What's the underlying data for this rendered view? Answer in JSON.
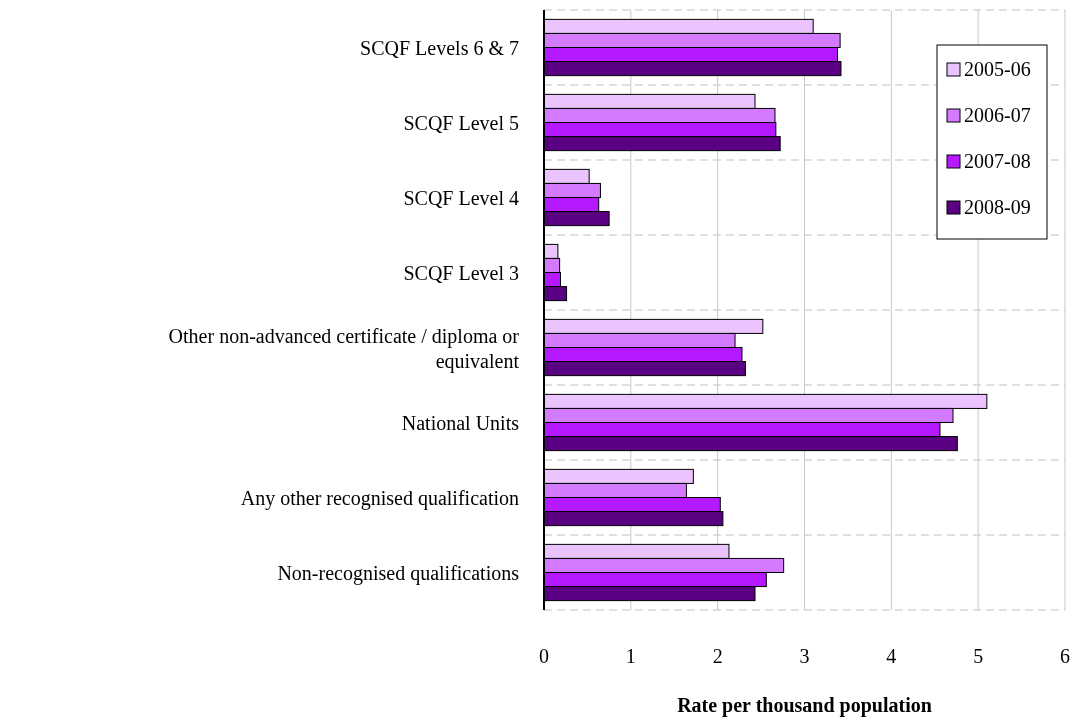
{
  "chart_data": {
    "type": "bar",
    "orientation": "horizontal",
    "xlabel": "Rate per thousand population",
    "categories": [
      "SCQF Levels 6 & 7",
      "SCQF Level 5",
      "SCQF Level 4",
      "SCQF Level 3",
      "Other non-advanced certificate / diploma or equivalent",
      "National Units",
      "Any other recognised qualification",
      "Non-recognised qualifications"
    ],
    "series": [
      {
        "name": "2005-06",
        "color": "#ebc3ff",
        "values": [
          3.1,
          2.43,
          0.52,
          0.16,
          2.52,
          5.1,
          1.72,
          2.13
        ]
      },
      {
        "name": "2006-07",
        "color": "#d27bff",
        "values": [
          3.41,
          2.66,
          0.65,
          0.18,
          2.2,
          4.71,
          1.64,
          2.76
        ]
      },
      {
        "name": "2007-08",
        "color": "#b419ff",
        "values": [
          3.38,
          2.67,
          0.63,
          0.19,
          2.28,
          4.56,
          2.03,
          2.56
        ]
      },
      {
        "name": "2008-09",
        "color": "#5a0082",
        "values": [
          3.42,
          2.72,
          0.75,
          0.26,
          2.32,
          4.76,
          2.06,
          2.43
        ]
      }
    ],
    "xlim": [
      0,
      6
    ],
    "xticks": [
      0,
      1,
      2,
      3,
      4,
      5,
      6
    ],
    "grid": true,
    "legend": "top right"
  }
}
